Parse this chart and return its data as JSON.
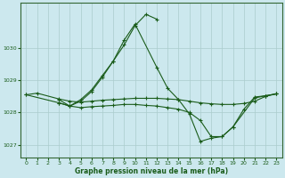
{
  "xlabel": "Graphe pression niveau de la mer (hPa)",
  "bg_color": "#cce8ee",
  "grid_color": "#aacccc",
  "line_color": "#1a5c1a",
  "ylim": [
    1026.6,
    1031.4
  ],
  "xlim": [
    -0.5,
    23.5
  ],
  "yticks": [
    1027,
    1028,
    1029,
    1030
  ],
  "xticks": [
    0,
    1,
    2,
    3,
    4,
    5,
    6,
    7,
    8,
    9,
    10,
    11,
    12,
    13,
    14,
    15,
    16,
    17,
    18,
    19,
    20,
    21,
    22,
    23
  ],
  "s1_x": [
    0,
    1,
    3,
    4,
    5,
    6,
    7,
    8,
    9,
    10,
    11,
    12,
    13,
    14,
    15,
    16,
    17,
    18,
    19,
    20,
    21,
    22,
    23
  ],
  "s1_y": [
    1028.55,
    1028.6,
    1028.42,
    1028.35,
    1028.32,
    1028.35,
    1028.38,
    1028.4,
    1028.42,
    1028.44,
    1028.44,
    1028.44,
    1028.42,
    1028.4,
    1028.35,
    1028.3,
    1028.27,
    1028.25,
    1028.25,
    1028.28,
    1028.35,
    1028.5,
    1028.58
  ],
  "s2_x": [
    0,
    3,
    4,
    5,
    6,
    7,
    8,
    9,
    10,
    11,
    12
  ],
  "s2_y": [
    1028.55,
    1028.3,
    1028.2,
    1028.4,
    1028.7,
    1029.15,
    1029.6,
    1030.1,
    1030.7,
    1031.05,
    1030.9
  ],
  "s3_x": [
    3,
    4,
    5,
    6,
    7,
    8,
    9,
    10,
    12,
    13,
    14,
    15,
    16,
    17,
    18,
    19,
    20,
    21,
    22,
    23
  ],
  "s3_y": [
    1028.4,
    1028.2,
    1028.35,
    1028.65,
    1029.1,
    1029.6,
    1030.25,
    1030.75,
    1029.4,
    1028.75,
    1028.4,
    1027.95,
    1027.1,
    1027.2,
    1027.25,
    1027.55,
    1028.1,
    1028.48,
    1028.52,
    1028.58
  ],
  "s4_x": [
    3,
    4,
    5,
    6,
    7,
    8,
    9,
    10,
    11,
    12,
    13,
    14,
    15,
    16,
    17,
    18,
    19,
    21,
    22,
    23
  ],
  "s4_y": [
    1028.3,
    1028.2,
    1028.15,
    1028.18,
    1028.2,
    1028.22,
    1028.25,
    1028.25,
    1028.22,
    1028.2,
    1028.15,
    1028.1,
    1028.0,
    1027.75,
    1027.25,
    1027.25,
    1027.55,
    1028.45,
    1028.52,
    1028.58
  ]
}
